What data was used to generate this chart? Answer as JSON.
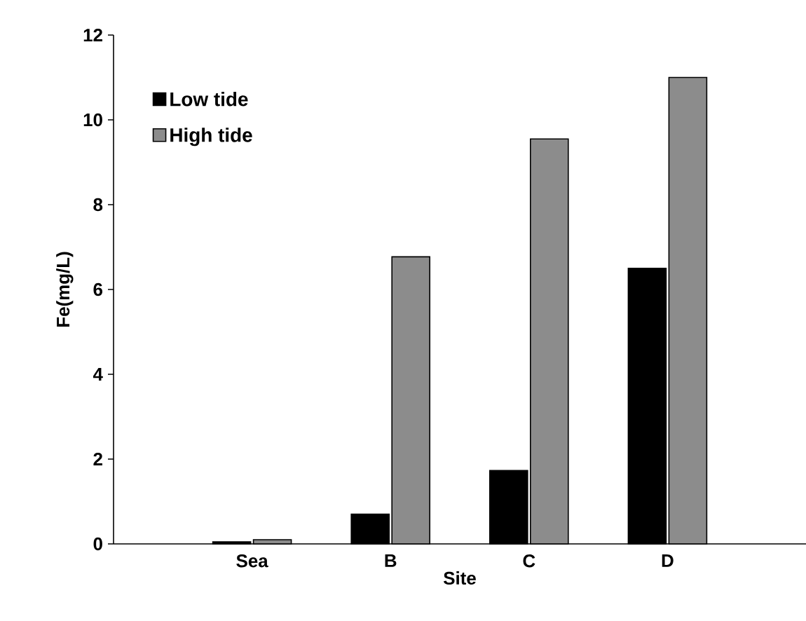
{
  "chart_data": {
    "type": "bar",
    "xlabel": "Site",
    "ylabel": "Fe(mg/L)",
    "categories": [
      "Sea",
      "B",
      "C",
      "D"
    ],
    "series": [
      {
        "name": "Low tide",
        "color": "#000000",
        "values": [
          0.05,
          0.7,
          1.73,
          6.5
        ]
      },
      {
        "name": "High tide",
        "color": "#8c8c8c",
        "values": [
          0.1,
          6.77,
          9.55,
          11.0
        ]
      }
    ],
    "ylim": [
      0,
      12
    ],
    "yticks": [
      0,
      2,
      4,
      6,
      8,
      10,
      12
    ],
    "legend": "top left",
    "grid": false
  }
}
